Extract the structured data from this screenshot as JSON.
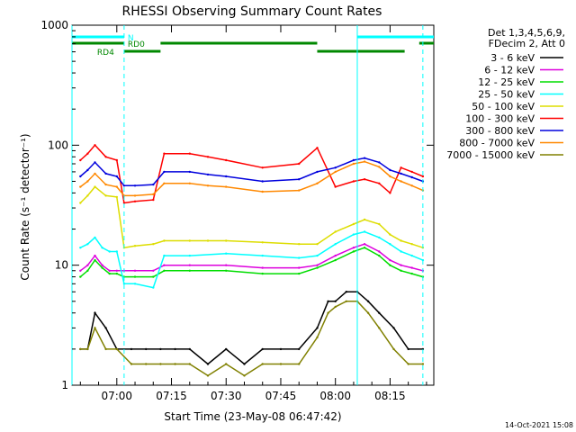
{
  "chart_data": {
    "type": "line",
    "title": "RHESSI Observing Summary Count Rates",
    "xlabel": "Start Time (23-May-08 06:47:42)",
    "ylabel": "Count Rate (s⁻¹ detector⁻¹)",
    "yscale": "log",
    "ylim": [
      1,
      1000
    ],
    "xlim": [
      "06:47:42",
      "08:27:00"
    ],
    "x_ticks": [
      "07:00",
      "07:15",
      "07:30",
      "07:45",
      "08:00",
      "08:15"
    ],
    "y_ticks": [
      "1",
      "10",
      "100",
      "1000"
    ],
    "grid": false,
    "legend_title": [
      "Det 1,3,4,5,6,9,",
      "FDecim 2, Att 0"
    ],
    "legend_placement": "right",
    "series": [
      {
        "name": "3 - 6 keV",
        "color": "#000000",
        "x": [
          "06:50",
          "06:52",
          "06:54",
          "06:57",
          "07:00",
          "07:04",
          "07:08",
          "07:12",
          "07:16",
          "07:20",
          "07:25",
          "07:30",
          "07:35",
          "07:40",
          "07:45",
          "07:50",
          "07:55",
          "07:58",
          "08:00",
          "08:03",
          "08:06",
          "08:09",
          "08:12",
          "08:16",
          "08:20",
          "08:24"
        ],
        "values": [
          2,
          2,
          4,
          3,
          2,
          2,
          2,
          2,
          2,
          2,
          1.5,
          2,
          1.5,
          2,
          2,
          2,
          3,
          5,
          5,
          6,
          6,
          5,
          4,
          3,
          2,
          2
        ]
      },
      {
        "name": "6 - 12 keV",
        "color": "#dd00dd",
        "x": [
          "06:50",
          "06:52",
          "06:54",
          "06:56",
          "06:58",
          "07:00",
          "07:02",
          "07:05",
          "07:10",
          "07:13",
          "07:20",
          "07:30",
          "07:40",
          "07:50",
          "07:55",
          "08:00",
          "08:05",
          "08:08",
          "08:12",
          "08:15",
          "08:18",
          "08:21",
          "08:24"
        ],
        "values": [
          9,
          10,
          12,
          10,
          9,
          9,
          9,
          9,
          9,
          10,
          10,
          10,
          9.5,
          9.5,
          10,
          12,
          14,
          15,
          13,
          11,
          10,
          9.5,
          9
        ]
      },
      {
        "name": "12 - 25 keV",
        "color": "#00dd00",
        "x": [
          "06:50",
          "06:52",
          "06:54",
          "06:56",
          "06:58",
          "07:00",
          "07:02",
          "07:05",
          "07:10",
          "07:13",
          "07:20",
          "07:30",
          "07:40",
          "07:50",
          "07:55",
          "08:00",
          "08:05",
          "08:08",
          "08:12",
          "08:15",
          "08:18",
          "08:21",
          "08:24"
        ],
        "values": [
          8,
          9,
          11,
          9.5,
          8.5,
          8.5,
          8,
          8,
          8,
          9,
          9,
          9,
          8.5,
          8.5,
          9.5,
          11,
          13,
          14,
          12,
          10,
          9,
          8.5,
          8
        ]
      },
      {
        "name": "25 - 50 keV",
        "color": "#00ffff",
        "x": [
          "06:50",
          "06:52",
          "06:54",
          "06:56",
          "06:58",
          "07:00",
          "07:02",
          "07:05",
          "07:10",
          "07:13",
          "07:20",
          "07:30",
          "07:40",
          "07:50",
          "07:55",
          "08:00",
          "08:05",
          "08:08",
          "08:12",
          "08:15",
          "08:18",
          "08:21",
          "08:24"
        ],
        "values": [
          14,
          15,
          17,
          14,
          13,
          13,
          7,
          7,
          6.5,
          12,
          12,
          12.5,
          12,
          11.5,
          12,
          15,
          18,
          19,
          17,
          15,
          13,
          12,
          11
        ]
      },
      {
        "name": "50 - 100 keV",
        "color": "#dddd00",
        "x": [
          "06:50",
          "06:52",
          "06:54",
          "06:57",
          "07:00",
          "07:02",
          "07:05",
          "07:10",
          "07:13",
          "07:20",
          "07:25",
          "07:30",
          "07:40",
          "07:50",
          "07:55",
          "08:00",
          "08:05",
          "08:08",
          "08:12",
          "08:15",
          "08:18",
          "08:21",
          "08:24"
        ],
        "values": [
          33,
          38,
          45,
          38,
          37,
          14,
          14.5,
          15,
          16,
          16,
          16,
          16,
          15.5,
          15,
          15,
          19,
          22,
          24,
          22,
          18,
          16,
          15,
          14
        ]
      },
      {
        "name": "100 - 300 keV",
        "color": "#ff0000",
        "x": [
          "06:50",
          "06:52",
          "06:54",
          "06:57",
          "07:00",
          "07:02",
          "07:05",
          "07:10",
          "07:13",
          "07:20",
          "07:25",
          "07:30",
          "07:40",
          "07:50",
          "07:55",
          "08:00",
          "08:05",
          "08:08",
          "08:12",
          "08:15",
          "08:18",
          "08:21",
          "08:24"
        ],
        "values": [
          75,
          85,
          100,
          80,
          75,
          33,
          34,
          35,
          85,
          85,
          80,
          75,
          65,
          70,
          95,
          45,
          50,
          52,
          48,
          40,
          65,
          60,
          55
        ]
      },
      {
        "name": "300 - 800 keV",
        "color": "#0000dd",
        "x": [
          "06:50",
          "06:52",
          "06:54",
          "06:57",
          "07:00",
          "07:02",
          "07:05",
          "07:10",
          "07:13",
          "07:20",
          "07:25",
          "07:30",
          "07:40",
          "07:50",
          "07:55",
          "08:00",
          "08:05",
          "08:08",
          "08:12",
          "08:15",
          "08:18",
          "08:21",
          "08:24"
        ],
        "values": [
          55,
          62,
          72,
          58,
          55,
          46,
          46,
          47,
          60,
          60,
          57,
          55,
          50,
          52,
          60,
          65,
          75,
          78,
          72,
          62,
          58,
          54,
          50
        ]
      },
      {
        "name": "800 - 7000 keV",
        "color": "#ff8800",
        "x": [
          "06:50",
          "06:52",
          "06:54",
          "06:57",
          "07:00",
          "07:02",
          "07:05",
          "07:10",
          "07:13",
          "07:20",
          "07:25",
          "07:30",
          "07:40",
          "07:50",
          "07:55",
          "08:00",
          "08:05",
          "08:08",
          "08:12",
          "08:15",
          "08:18",
          "08:21",
          "08:24"
        ],
        "values": [
          45,
          50,
          58,
          47,
          45,
          38,
          38,
          39,
          48,
          48,
          46,
          45,
          41,
          42,
          48,
          60,
          70,
          73,
          66,
          55,
          50,
          46,
          42
        ]
      },
      {
        "name": "7000 - 15000 keV",
        "color": "#808000",
        "x": [
          "06:50",
          "06:52",
          "06:54",
          "06:57",
          "07:00",
          "07:04",
          "07:08",
          "07:12",
          "07:16",
          "07:20",
          "07:25",
          "07:30",
          "07:35",
          "07:40",
          "07:45",
          "07:50",
          "07:55",
          "07:58",
          "08:00",
          "08:03",
          "08:06",
          "08:09",
          "08:12",
          "08:16",
          "08:20",
          "08:24"
        ],
        "values": [
          2,
          2,
          3,
          2,
          2,
          1.5,
          1.5,
          1.5,
          1.5,
          1.5,
          1.2,
          1.5,
          1.2,
          1.5,
          1.5,
          1.5,
          2.5,
          4,
          4.5,
          5,
          5,
          4,
          3,
          2,
          1.5,
          1.5
        ]
      }
    ],
    "vertical_markers": [
      {
        "time": "06:47:42",
        "color": "#00ffff",
        "style": "solid"
      },
      {
        "time": "07:02:00",
        "color": "#00ffff",
        "style": "dashed"
      },
      {
        "time": "08:06:00",
        "color": "#00ffff",
        "style": "solid"
      },
      {
        "time": "08:24:00",
        "color": "#00ffff",
        "style": "dashed"
      }
    ],
    "annotation_bars": [
      {
        "label": "N",
        "color": "#00ffff",
        "segments": [
          [
            "06:47:42",
            "07:02:00"
          ],
          [
            "08:06:00",
            "08:27:00"
          ]
        ],
        "row": 1
      },
      {
        "label": "RD0",
        "color": "#008800",
        "segments": [
          [
            "06:47:42",
            "07:02:00"
          ],
          [
            "07:12:00",
            "07:55:00"
          ],
          [
            "08:23:00",
            "08:27:00"
          ]
        ],
        "row": 2
      },
      {
        "label": "RD4",
        "color": "#008800",
        "segments": [
          [
            "07:02:00",
            "07:12:00"
          ],
          [
            "07:55:00",
            "08:19:00"
          ]
        ],
        "row": 3
      }
    ]
  },
  "footer": {
    "timestamp": "14-Oct-2021 15:08"
  }
}
